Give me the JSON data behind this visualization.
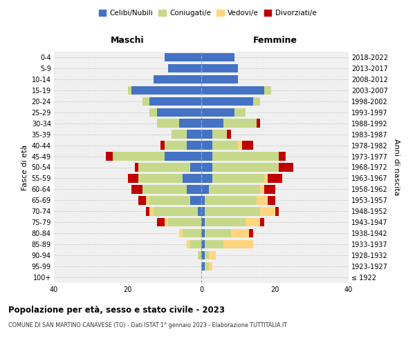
{
  "age_groups": [
    "100+",
    "95-99",
    "90-94",
    "85-89",
    "80-84",
    "75-79",
    "70-74",
    "65-69",
    "60-64",
    "55-59",
    "50-54",
    "45-49",
    "40-44",
    "35-39",
    "30-34",
    "25-29",
    "20-24",
    "15-19",
    "10-14",
    "5-9",
    "0-4"
  ],
  "birth_years": [
    "≤ 1922",
    "1923-1927",
    "1928-1932",
    "1933-1937",
    "1938-1942",
    "1943-1947",
    "1948-1952",
    "1953-1957",
    "1958-1962",
    "1963-1967",
    "1968-1972",
    "1973-1977",
    "1978-1982",
    "1983-1987",
    "1988-1992",
    "1993-1997",
    "1998-2002",
    "2003-2007",
    "2008-2012",
    "2013-2017",
    "2018-2022"
  ],
  "maschi_celibi": [
    0,
    0,
    0,
    0,
    0,
    0,
    1,
    3,
    4,
    5,
    3,
    10,
    4,
    4,
    6,
    12,
    14,
    19,
    13,
    9,
    10
  ],
  "maschi_coniugati": [
    0,
    0,
    1,
    3,
    5,
    9,
    12,
    11,
    12,
    12,
    14,
    14,
    6,
    4,
    6,
    2,
    2,
    1,
    0,
    0,
    0
  ],
  "maschi_vedovi": [
    0,
    0,
    0,
    1,
    1,
    1,
    1,
    1,
    0,
    0,
    0,
    0,
    0,
    0,
    0,
    0,
    0,
    0,
    0,
    0,
    0
  ],
  "maschi_divorziati": [
    0,
    0,
    0,
    0,
    0,
    2,
    1,
    2,
    3,
    3,
    1,
    2,
    1,
    0,
    0,
    0,
    0,
    0,
    0,
    0,
    0
  ],
  "femmine_celibi": [
    0,
    1,
    1,
    1,
    1,
    1,
    1,
    1,
    2,
    3,
    3,
    3,
    3,
    3,
    6,
    9,
    14,
    17,
    10,
    10,
    9
  ],
  "femmine_coniugati": [
    0,
    1,
    1,
    5,
    7,
    11,
    15,
    14,
    14,
    14,
    18,
    18,
    7,
    4,
    9,
    3,
    2,
    2,
    0,
    0,
    0
  ],
  "femmine_vedovi": [
    0,
    1,
    2,
    8,
    5,
    4,
    4,
    3,
    1,
    1,
    0,
    0,
    1,
    0,
    0,
    0,
    0,
    0,
    0,
    0,
    0
  ],
  "femmine_divorziati": [
    0,
    0,
    0,
    0,
    1,
    1,
    1,
    2,
    3,
    4,
    4,
    2,
    3,
    1,
    1,
    0,
    0,
    0,
    0,
    0,
    0
  ],
  "color_celibi": "#4472C4",
  "color_coniugati": "#C6D98A",
  "color_vedovi": "#FFD580",
  "color_divorziati": "#C00000",
  "title1": "Popolazione per età, sesso e stato civile - 2023",
  "title2": "COMUNE DI SAN MARTINO CANAVESE (TO) - Dati ISTAT 1° gennaio 2023 - Elaborazione TUTTITALIA.IT",
  "xlabel_maschi": "Maschi",
  "xlabel_femmine": "Femmine",
  "ylabel_left": "Fasce di età",
  "ylabel_right": "Anni di nascita",
  "xlim": 40,
  "legend_labels": [
    "Celibi/Nubili",
    "Coniugati/e",
    "Vedovi/e",
    "Divorziati/e"
  ],
  "bg_color": "#FFFFFF",
  "plot_bg": "#F0F0F0",
  "grid_color": "#CCCCCC"
}
